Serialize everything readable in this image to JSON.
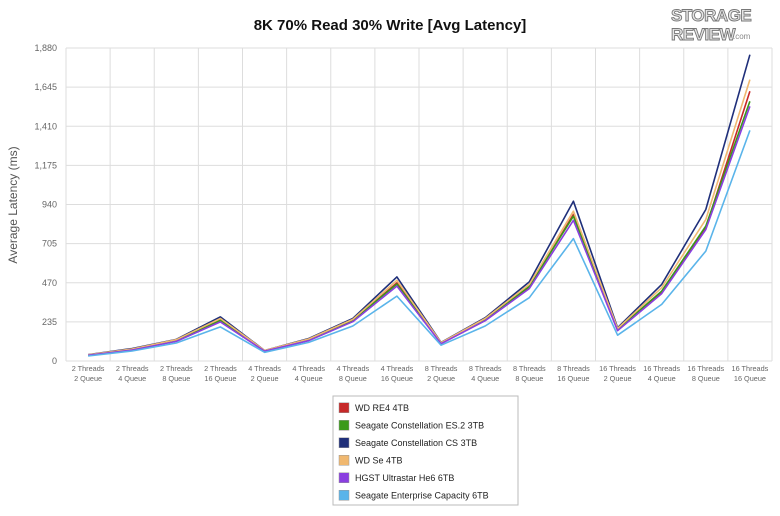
{
  "logo": {
    "line1": "STORAGE",
    "line2": "REVIEW",
    "suffix": ".com"
  },
  "chart_data": {
    "type": "line",
    "title": "8K 70% Read 30% Write [Avg Latency]",
    "ylabel": "Average Latency (ms)",
    "xlabel": "",
    "ylim": [
      0,
      1880
    ],
    "yticks": [
      0,
      235,
      470,
      705,
      940,
      1175,
      1410,
      1645,
      1880
    ],
    "ytick_labels": [
      "0",
      "235",
      "470",
      "705",
      "940",
      "1,175",
      "1,410",
      "1,645",
      "1,880"
    ],
    "grid": true,
    "legend_position": "bottom",
    "categories": [
      [
        "2 Threads",
        "2 Queue"
      ],
      [
        "2 Threads",
        "4 Queue"
      ],
      [
        "2 Threads",
        "8 Queue"
      ],
      [
        "2 Threads",
        "16 Queue"
      ],
      [
        "4 Threads",
        "2 Queue"
      ],
      [
        "4 Threads",
        "4 Queue"
      ],
      [
        "4 Threads",
        "8 Queue"
      ],
      [
        "4 Threads",
        "16 Queue"
      ],
      [
        "8 Threads",
        "2 Queue"
      ],
      [
        "8 Threads",
        "4 Queue"
      ],
      [
        "8 Threads",
        "8 Queue"
      ],
      [
        "8 Threads",
        "16 Queue"
      ],
      [
        "16 Threads",
        "2 Queue"
      ],
      [
        "16 Threads",
        "4 Queue"
      ],
      [
        "16 Threads",
        "8 Queue"
      ],
      [
        "16 Threads",
        "16 Queue"
      ]
    ],
    "series": [
      {
        "name": "WD RE4 4TB",
        "color": "#c62828",
        "values": [
          35,
          68,
          120,
          240,
          60,
          125,
          240,
          470,
          105,
          245,
          440,
          880,
          185,
          410,
          800,
          1620
        ]
      },
      {
        "name": "Seagate Constellation ES.2 3TB",
        "color": "#3a9a1a",
        "values": [
          36,
          70,
          124,
          246,
          61,
          128,
          246,
          462,
          108,
          248,
          448,
          870,
          190,
          420,
          810,
          1560
        ]
      },
      {
        "name": "Seagate Constellation CS 3TB",
        "color": "#1f2f7a",
        "values": [
          38,
          75,
          130,
          265,
          63,
          135,
          255,
          505,
          112,
          260,
          475,
          960,
          200,
          460,
          910,
          1840
        ]
      },
      {
        "name": "WD Se 4TB",
        "color": "#f0b870",
        "values": [
          37,
          72,
          128,
          255,
          63,
          132,
          250,
          485,
          110,
          255,
          460,
          900,
          195,
          440,
          850,
          1690
        ]
      },
      {
        "name": "HGST Ultrastar He6 6TB",
        "color": "#8a3fe0",
        "values": [
          34,
          66,
          118,
          235,
          59,
          122,
          236,
          450,
          104,
          242,
          435,
          845,
          182,
          405,
          790,
          1530
        ]
      },
      {
        "name": "Seagate Enterprise Capacity 6TB",
        "color": "#5ab4ea",
        "values": [
          30,
          60,
          108,
          205,
          52,
          112,
          210,
          390,
          95,
          210,
          380,
          735,
          155,
          340,
          660,
          1385
        ]
      }
    ]
  }
}
